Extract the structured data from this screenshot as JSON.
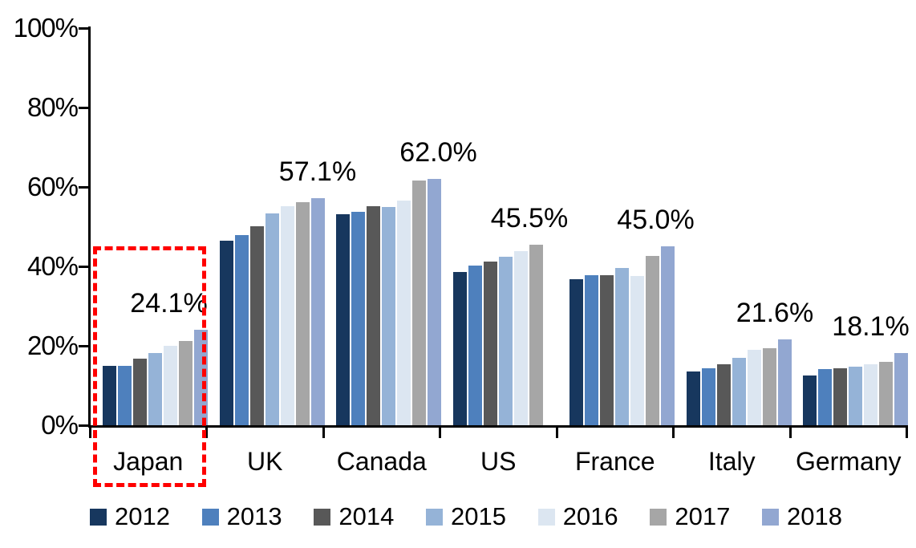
{
  "chart_data": {
    "type": "bar",
    "title": "",
    "xlabel": "",
    "ylabel": "",
    "ylim": [
      0,
      100
    ],
    "grid": false,
    "legend_position": "bottom",
    "y_tick_labels": [
      "100%",
      "80%",
      "60%",
      "40%",
      "20%",
      "0%"
    ],
    "y_tick_values": [
      100,
      80,
      60,
      40,
      20,
      0
    ],
    "categories": [
      "Japan",
      "UK",
      "Canada",
      "US",
      "France",
      "Italy",
      "Germany"
    ],
    "series": [
      {
        "name": "2012",
        "color": "#17375E",
        "values": [
          14.9,
          46.4,
          53.2,
          38.5,
          36.7,
          13.5,
          12.6
        ]
      },
      {
        "name": "2013",
        "color": "#4E80BD",
        "values": [
          15.0,
          47.9,
          53.7,
          40.3,
          37.8,
          14.3,
          14.1
        ]
      },
      {
        "name": "2014",
        "color": "#585858",
        "values": [
          16.8,
          50.1,
          55.2,
          41.2,
          37.7,
          15.4,
          14.4
        ]
      },
      {
        "name": "2015",
        "color": "#95B3D7",
        "values": [
          18.2,
          53.4,
          54.9,
          42.4,
          39.5,
          17.0,
          14.8
        ]
      },
      {
        "name": "2016",
        "color": "#DCE6F1",
        "values": [
          20.0,
          55.2,
          56.6,
          43.8,
          37.6,
          19.0,
          15.3
        ]
      },
      {
        "name": "2017",
        "color": "#A6A6A6",
        "values": [
          21.2,
          56.1,
          61.7,
          45.5,
          42.6,
          19.3,
          16.0
        ]
      },
      {
        "name": "2018",
        "color": "#92A7D1",
        "values": [
          24.1,
          57.1,
          62.0,
          null,
          45.0,
          21.6,
          18.1
        ]
      }
    ],
    "data_labels": [
      "24.1%",
      "57.1%",
      "62.0%",
      "45.5%",
      "45.0%",
      "21.6%",
      "18.1%"
    ],
    "label_dx": [
      -40,
      0,
      5,
      -8,
      -15,
      -12,
      -38
    ],
    "annotation": {
      "type": "red-dashed-box",
      "highlighted_category": "Japan",
      "color": "#FF0000"
    },
    "axis_color": "#000000"
  }
}
